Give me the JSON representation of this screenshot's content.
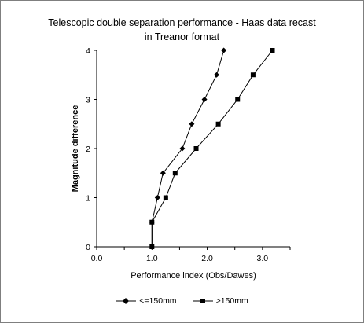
{
  "chart_data": {
    "type": "line",
    "title": "Telescopic double separation performance - Haas data recast in Treanor format",
    "title_lines": [
      "Telescopic double separation performance - Haas data recast",
      "in Treanor format"
    ],
    "xlabel": "Performance index (Obs/Dawes)",
    "ylabel": "Magnitude difference",
    "xlim": [
      0,
      3.5
    ],
    "ylim": [
      0,
      4
    ],
    "xticks": [
      "0.0",
      "1.0",
      "2.0",
      "3.0"
    ],
    "xtick_values": [
      0,
      1,
      2,
      3
    ],
    "yticks": [
      "0",
      "1",
      "2",
      "3",
      "4"
    ],
    "ytick_values": [
      0,
      1,
      2,
      3,
      4
    ],
    "grid": false,
    "legend_position": "bottom",
    "series": [
      {
        "name": "<=150mm",
        "marker": "diamond",
        "color": "#000000",
        "x": [
          1.0,
          1.0,
          1.1,
          1.2,
          1.55,
          1.72,
          1.95,
          2.17,
          2.3
        ],
        "y": [
          0,
          0.5,
          1.0,
          1.5,
          2.0,
          2.5,
          3.0,
          3.5,
          4.0
        ]
      },
      {
        "name": ">150mm",
        "marker": "square",
        "color": "#000000",
        "x": [
          1.0,
          1.0,
          1.25,
          1.42,
          1.8,
          2.2,
          2.55,
          2.83,
          3.18
        ],
        "y": [
          0,
          0.5,
          1.0,
          1.5,
          2.0,
          2.5,
          3.0,
          3.5,
          4.0
        ]
      }
    ]
  }
}
